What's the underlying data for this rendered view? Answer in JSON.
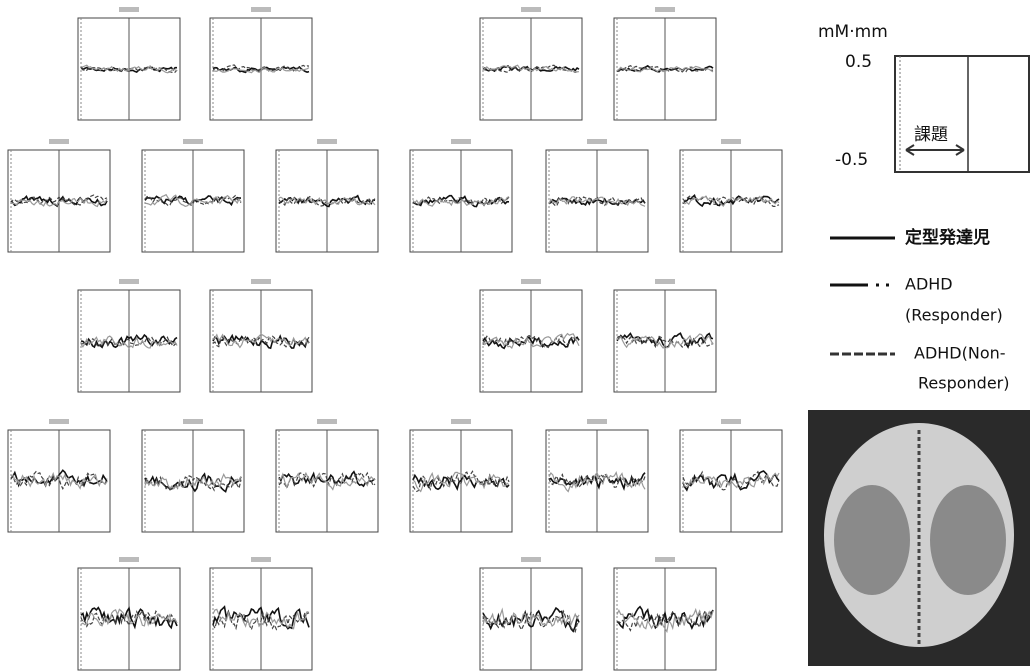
{
  "legend": {
    "unit": "mM·mm",
    "ymax": "0.5",
    "ymin": "-0.5",
    "task": "課題",
    "entries": [
      [
        "定型発達児"
      ],
      [
        "ADHD",
        "(Responder)"
      ],
      [
        "ADHD(Non-",
        "Responder)"
      ]
    ]
  }
}
